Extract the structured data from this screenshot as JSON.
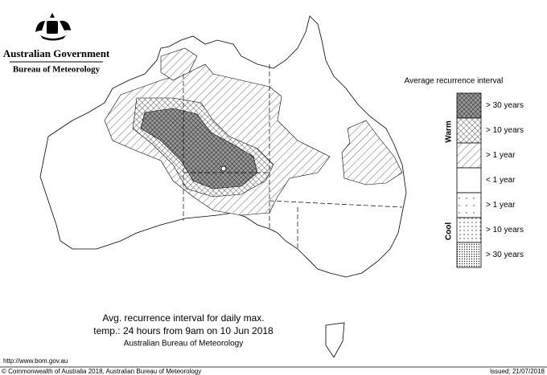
{
  "header": {
    "government": "Australian Government",
    "bureau": "Bureau of Meteorology"
  },
  "legend": {
    "title": "Average recurrence interval",
    "groups": {
      "warm": "Warm",
      "cool": "Cool"
    },
    "items": [
      "> 30 years",
      "> 10 years",
      "> 1 year",
      "< 1 year",
      "> 1 year",
      "> 10 years",
      "> 30 years"
    ]
  },
  "caption": {
    "lines": [
      "Avg. recurrence interval for daily max.",
      "temp.: 24 hours from 9am on 10 Jun 2018",
      "Australian Bureau of Meteorology"
    ]
  },
  "footer": {
    "url": "http://www.bom.gov.au",
    "copyright": "© Commonwealth of Australia 2018, Australian Bureau of Meteorology",
    "issued": "Issued: 21/07/2018"
  }
}
